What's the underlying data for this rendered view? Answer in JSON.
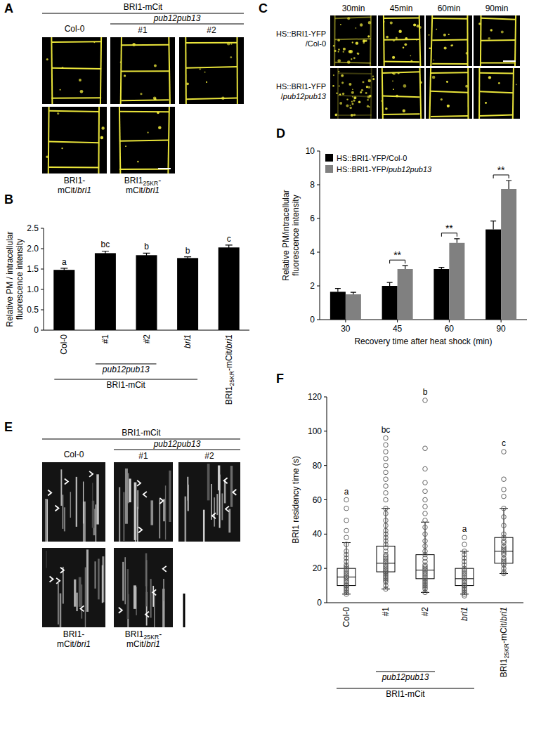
{
  "panel_letters": [
    "A",
    "B",
    "C",
    "D",
    "E",
    "F"
  ],
  "panel_a": {
    "group_label": "BRI1-mCit",
    "subgroup_label": "pub12pub13",
    "top_labels": [
      "Col-0",
      "#1",
      "#2"
    ],
    "bottom_labels": [
      [
        "BRI1-",
        "mCit/bri1"
      ],
      [
        "BRI125KR-",
        "mCit/bri1"
      ]
    ]
  },
  "panel_c": {
    "time_labels": [
      "30min",
      "45min",
      "60min",
      "90min"
    ],
    "row_labels": [
      [
        "HS::BRI1-YFP",
        "/Col-0"
      ],
      [
        "HS::BRI1-YFP",
        "/pub12pub13"
      ]
    ]
  },
  "panel_e": {
    "group_label": "BRI1-mCit",
    "subgroup_label": "pub12pub13",
    "top_labels": [
      "Col-0",
      "#1",
      "#2"
    ],
    "bottom_labels": [
      [
        "BRI1-",
        "mCit/bri1"
      ],
      [
        "BRI125KR-",
        "mCit/bri1"
      ]
    ]
  },
  "chart_data": [
    {
      "type": "bar",
      "ylabel": [
        "Relative PM / intracellular",
        "fluorescence intensity"
      ],
      "categories": [
        "Col-0",
        "#1",
        "#2",
        "bri1",
        "BRI125KR-mCit/bri1"
      ],
      "values": [
        1.48,
        1.89,
        1.84,
        1.77,
        2.03
      ],
      "errors": [
        0.04,
        0.05,
        0.05,
        0.03,
        0.06
      ],
      "significance_letters": [
        "a",
        "bc",
        "b",
        "b",
        "c"
      ],
      "group_labels": [
        "pub12pub13",
        "BRI1-mCit"
      ],
      "color": "#000000",
      "ylim": [
        0,
        2.5
      ],
      "yticks": [
        0,
        0.5,
        {
          "value": 1,
          "label": "1.0"
        },
        1.5,
        {
          "value": 2,
          "label": "2.0"
        },
        2.5
      ]
    },
    {
      "type": "bar",
      "ylabel": [
        "Relative PM/intracellular",
        "fluorescence intensity"
      ],
      "xlabel": "Recovery time after heat shock (min)",
      "categories": [
        "30",
        "45",
        "60",
        "90"
      ],
      "series": [
        {
          "name": "HS::BRI1-YFP/Col-0",
          "color": "#000000",
          "values": [
            1.65,
            2.0,
            3.0,
            5.35
          ],
          "errors": [
            0.2,
            0.2,
            0.1,
            0.5
          ]
        },
        {
          "name": "HS::BRI1-YFP/pub12pub13",
          "color": "#808080",
          "values": [
            1.5,
            3.0,
            4.55,
            7.75
          ],
          "errors": [
            0.12,
            0.2,
            0.25,
            0.5
          ]
        }
      ],
      "significance": [
        null,
        "**",
        "**",
        "**"
      ],
      "legend": "top-left",
      "ylim": [
        0,
        10
      ],
      "yticks": [
        0,
        2,
        4,
        6,
        8,
        10
      ]
    },
    {
      "type": "box",
      "ylabel": "BRI1 residency time (s)",
      "categories": [
        "Col-0",
        "#1",
        "#2",
        "bri1",
        "BRI125KR-mCit/bri1"
      ],
      "boxes": [
        {
          "whisker_low": 5,
          "q1": 10,
          "median": 15,
          "q3": 20,
          "whisker_high": 35
        },
        {
          "whisker_low": 8,
          "q1": 18,
          "median": 23,
          "q3": 33,
          "whisker_high": 55
        },
        {
          "whisker_low": 6,
          "q1": 14,
          "median": 19,
          "q3": 28,
          "whisker_high": 47
        },
        {
          "whisker_low": 5,
          "q1": 10,
          "median": 14,
          "q3": 20,
          "whisker_high": 30
        },
        {
          "whisker_low": 17,
          "q1": 23,
          "median": 30,
          "q3": 38,
          "whisker_high": 55
        }
      ],
      "points": [
        [
          5,
          6,
          7,
          8,
          9,
          10,
          10,
          11,
          12,
          13,
          14,
          15,
          15,
          16,
          17,
          18,
          19,
          20,
          21,
          22,
          24,
          26,
          28,
          30,
          34,
          38,
          42,
          48,
          55,
          60
        ],
        [
          8,
          10,
          12,
          13,
          14,
          15,
          16,
          17,
          18,
          18,
          19,
          20,
          21,
          22,
          23,
          24,
          25,
          26,
          27,
          28,
          30,
          32,
          34,
          36,
          38,
          40,
          42,
          45,
          48,
          52,
          55,
          60,
          64,
          68,
          72,
          76,
          80,
          84,
          88,
          92,
          96
        ],
        [
          6,
          8,
          9,
          10,
          11,
          12,
          13,
          14,
          15,
          16,
          17,
          18,
          19,
          20,
          21,
          22,
          24,
          26,
          28,
          30,
          33,
          36,
          40,
          44,
          48,
          52,
          56,
          60,
          65,
          70,
          78,
          90,
          118
        ],
        [
          4,
          5,
          6,
          7,
          8,
          9,
          10,
          10,
          11,
          12,
          13,
          14,
          15,
          16,
          17,
          18,
          19,
          20,
          22,
          24,
          26,
          28,
          30,
          34,
          38
        ],
        [
          17,
          18,
          20,
          22,
          23,
          24,
          25,
          26,
          28,
          29,
          30,
          31,
          32,
          33,
          35,
          36,
          38,
          40,
          45,
          50,
          55,
          62,
          66,
          72,
          88
        ]
      ],
      "significance_letters": [
        "a",
        "bc",
        "b",
        "a",
        "c"
      ],
      "group_labels": [
        "pub12pub13",
        "BRI1-mCit"
      ],
      "ylim": [
        0,
        120
      ],
      "yticks": [
        0,
        20,
        40,
        60,
        80,
        100,
        120
      ]
    }
  ]
}
